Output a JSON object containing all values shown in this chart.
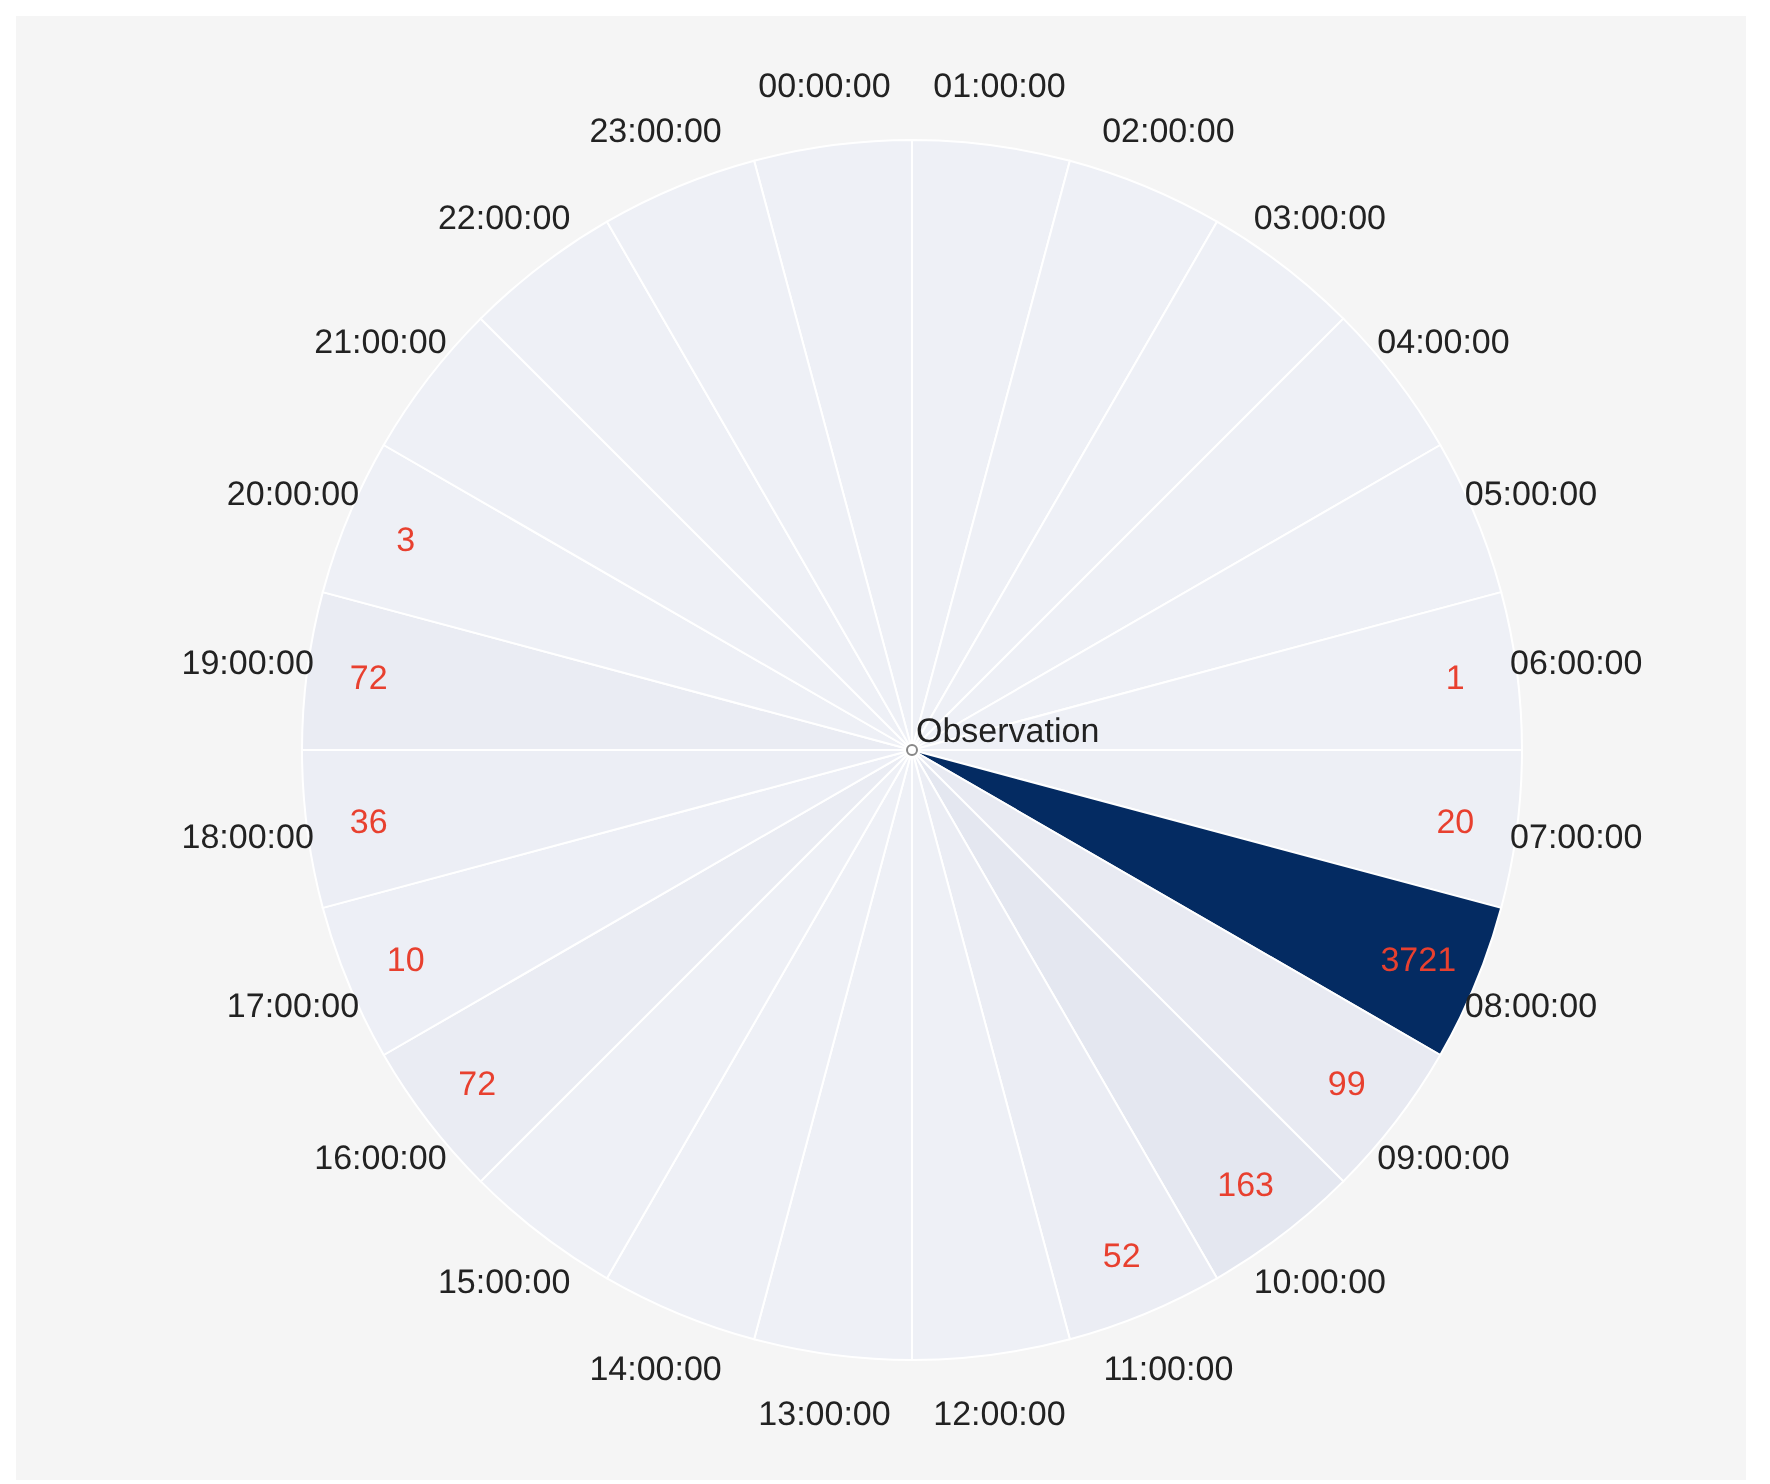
{
  "chart_data": {
    "type": "other",
    "categories": [
      "00:00:00",
      "01:00:00",
      "02:00:00",
      "03:00:00",
      "04:00:00",
      "05:00:00",
      "06:00:00",
      "07:00:00",
      "08:00:00",
      "09:00:00",
      "10:00:00",
      "11:00:00",
      "12:00:00",
      "13:00:00",
      "14:00:00",
      "15:00:00",
      "16:00:00",
      "17:00:00",
      "18:00:00",
      "19:00:00",
      "20:00:00",
      "21:00:00",
      "22:00:00",
      "23:00:00"
    ],
    "y_categories": [
      "Observation"
    ],
    "values": [
      null,
      null,
      null,
      null,
      null,
      null,
      1,
      20,
      3721,
      99,
      163,
      52,
      null,
      null,
      null,
      null,
      72,
      10,
      36,
      72,
      3,
      null,
      null,
      null
    ],
    "colors": [
      "#eef0f6",
      "#eef0f6",
      "#eef0f6",
      "#eef0f6",
      "#eef0f6",
      "#eef0f6",
      "#eef0f6",
      "#edeff5",
      "#042b62",
      "#e8eaf2",
      "#e4e7f0",
      "#ebedf4",
      "#eef0f6",
      "#eef0f6",
      "#eef0f6",
      "#eef0f6",
      "#eaecf3",
      "#edeff6",
      "#eceef5",
      "#eaecf3",
      "#eef0f6",
      "#eef0f6",
      "#eef0f6",
      "#eef0f6"
    ],
    "data_labels": true
  }
}
